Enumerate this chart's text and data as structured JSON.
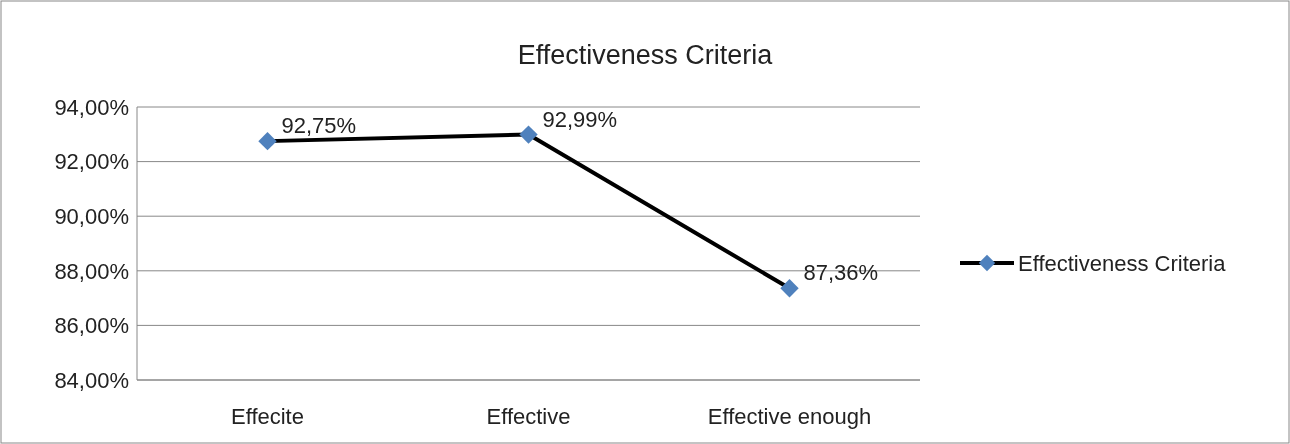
{
  "chart_data": {
    "type": "line",
    "title": "Effectiveness Criteria",
    "categories": [
      "Effecite",
      "Effective",
      "Effective enough"
    ],
    "series": [
      {
        "name": "Effectiveness Criteria",
        "color": "#000000",
        "colors": [
          "#4f81bd",
          "#4f81bd",
          "#4f81bd"
        ],
        "values": [
          92.75,
          92.99,
          87.36
        ],
        "value_labels": [
          "92,75%",
          "92,99%",
          "87,36%"
        ]
      }
    ],
    "ylim": [
      84,
      94
    ],
    "yticks": [
      {
        "value": 84,
        "label": "84,00%"
      },
      {
        "value": 86,
        "label": "86,00%"
      },
      {
        "value": 88,
        "label": "88,00%"
      },
      {
        "value": 90,
        "label": "90,00%"
      },
      {
        "value": 92,
        "label": "92,00%"
      },
      {
        "value": 94,
        "label": "94,00%"
      }
    ],
    "grid": "y",
    "legend": "right",
    "marker": "diamond",
    "line_style": "solid"
  }
}
